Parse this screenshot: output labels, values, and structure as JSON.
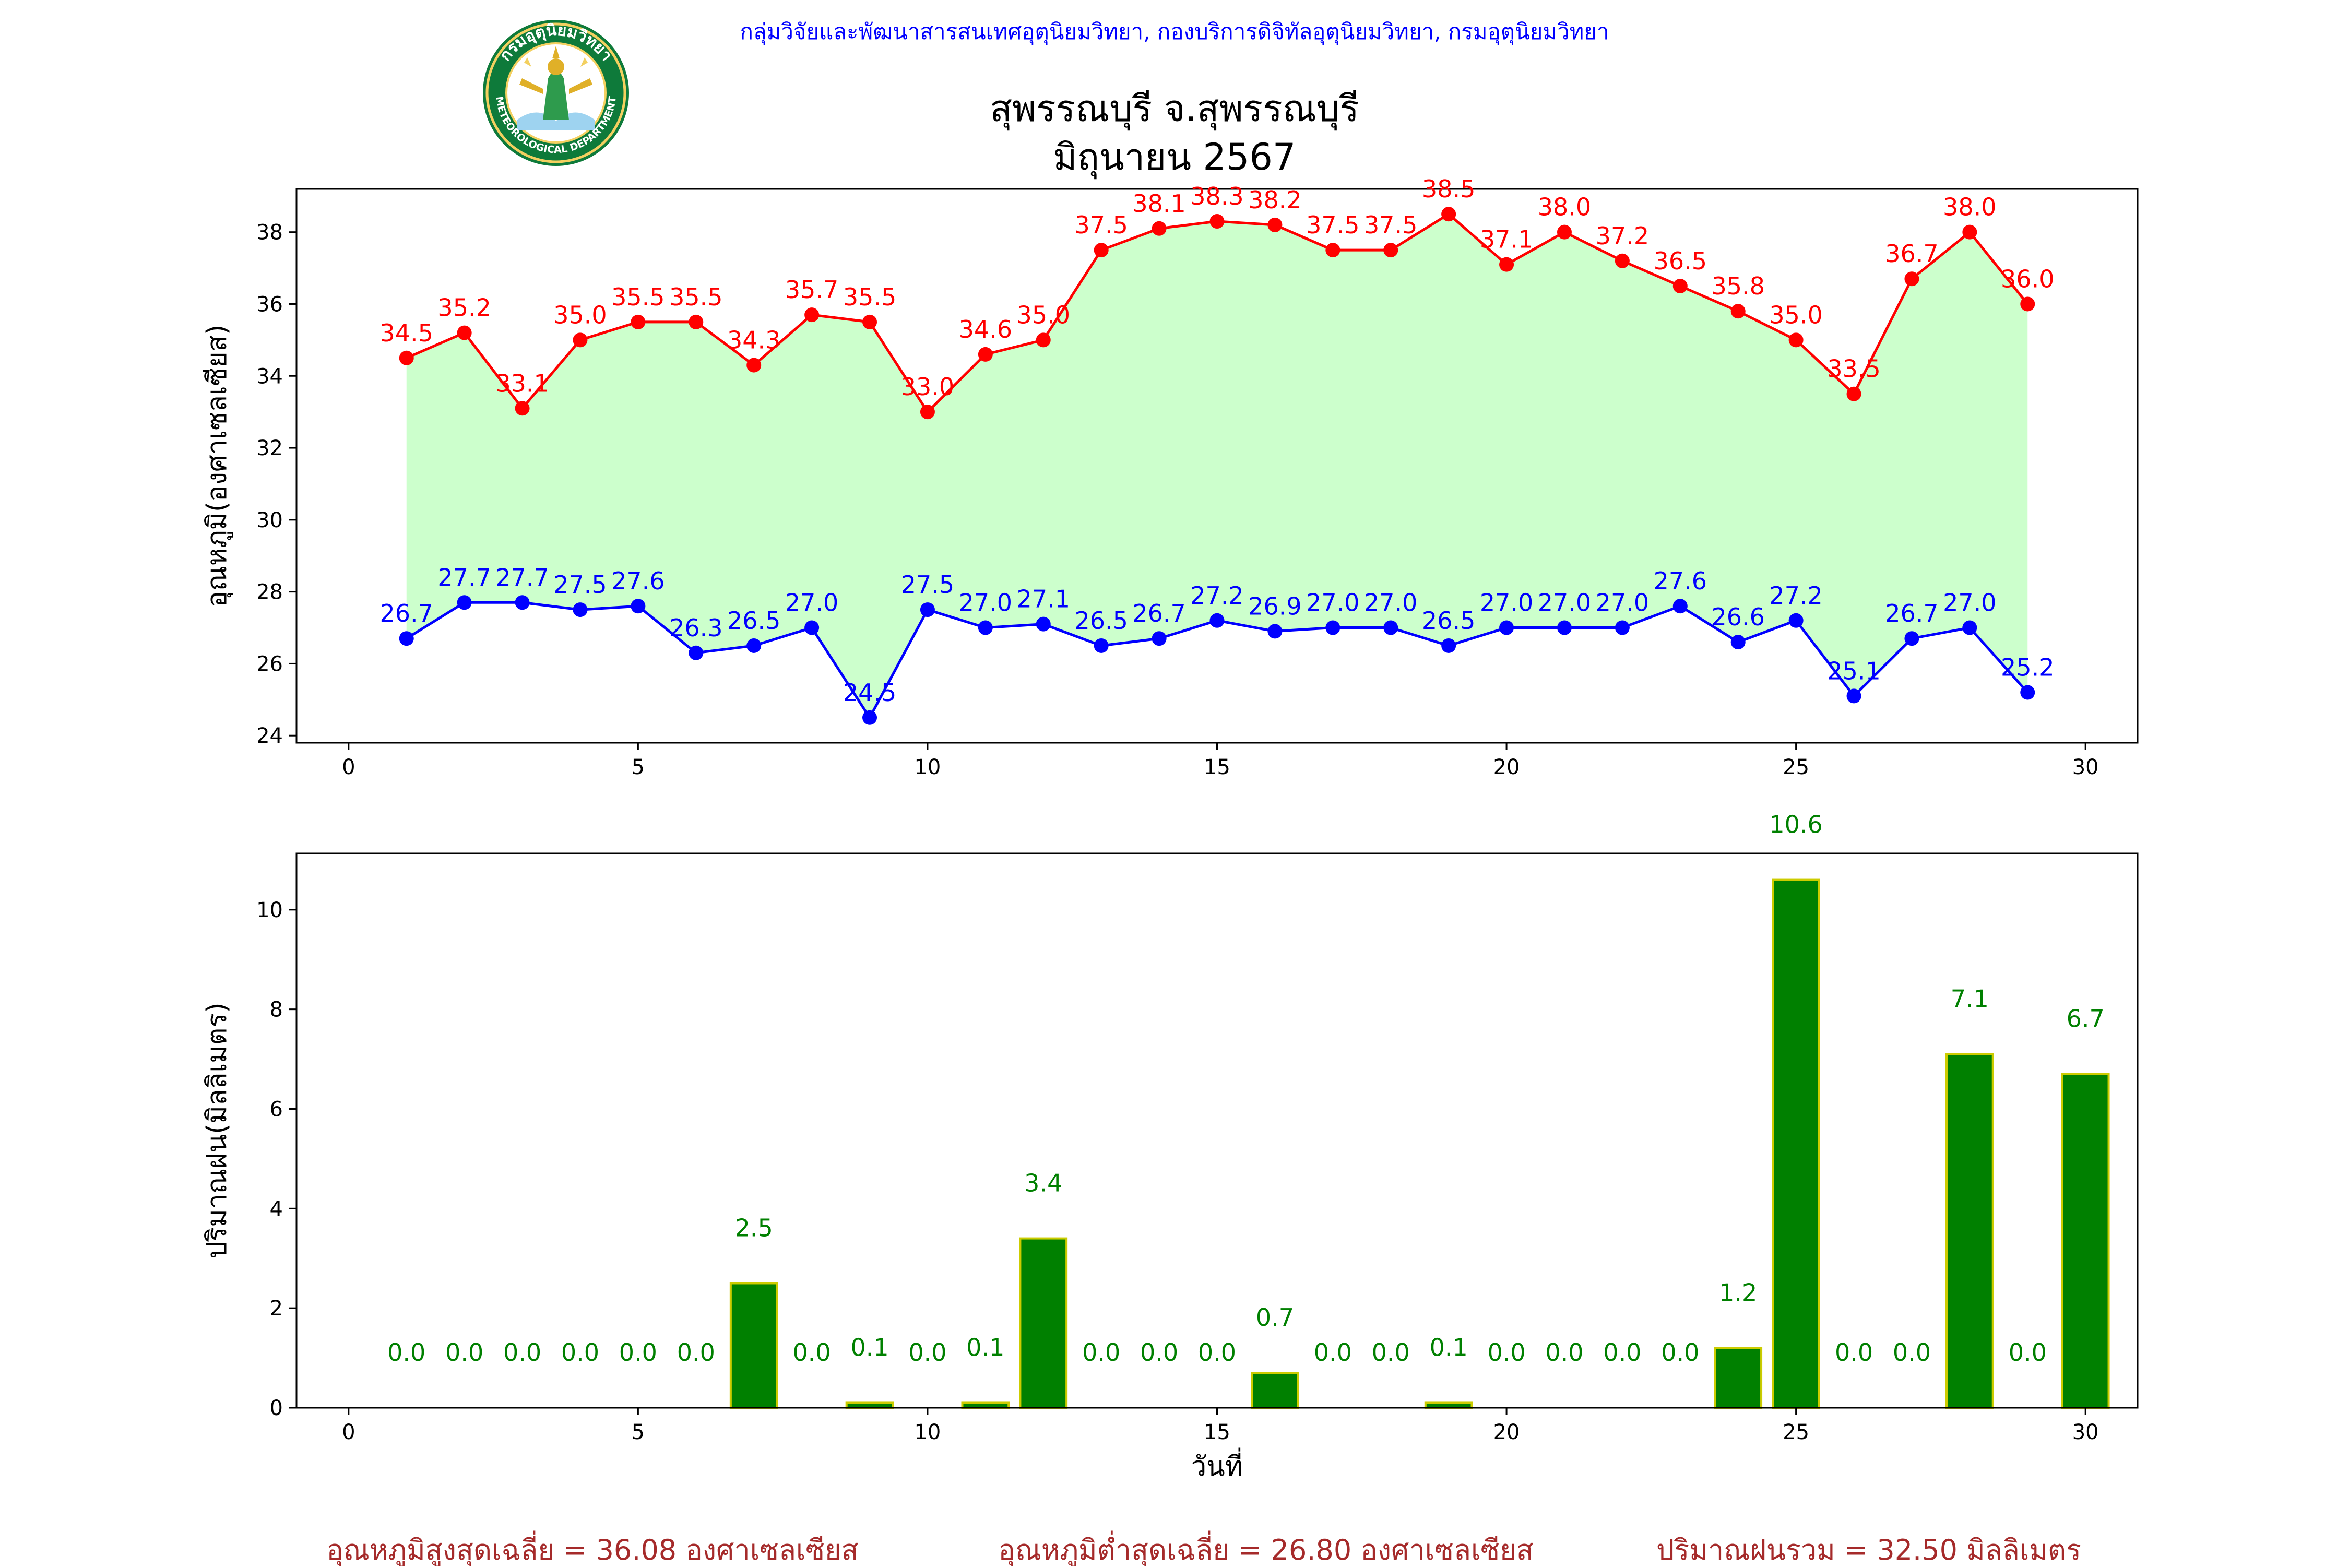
{
  "header": {
    "department_line": "กลุ่มวิจัยและพัฒนาสารสนเทศอุตุนิยมวิทยา, กองบริการดิจิทัลอุตุนิยมวิทยา, กรมอุตุนิยมวิทยา",
    "title_line1": "สุพรรณบุรี จ.สุพรรณบุรี",
    "title_line2": "มิถุนายน 2567",
    "logo_icon": "meteorological-department-seal-icon",
    "logo_text_top": "กรมอุตุนิยมวิทยา",
    "logo_text_bottom": "METEOROLOGICAL DEPARTMENT"
  },
  "footer": {
    "avg_max": "อุณหภูมิสูงสุดเฉลี่ย = 36.08 องศาเซลเซียส",
    "avg_min": "อุณหภูมิต่ำสุดเฉลี่ย = 26.80 องศาเซลเซียส",
    "total_rain": "ปริมาณฝนรวม = 32.50 มิลลิเมตร"
  },
  "colors": {
    "max_line": "#ff0000",
    "min_line": "#0000ff",
    "fill_between": "#ccffcc",
    "rain_bar": "#008000",
    "rain_edge": "#cccc00",
    "rain_label": "#008000",
    "header_text": "#0000ff",
    "footer_text": "#a52a2a"
  },
  "chart_data": [
    {
      "type": "line",
      "title": "",
      "xlabel": "",
      "ylabel": "อุณหภูมิ(องศาเซลเซียส)",
      "xlim": [
        -0.9,
        30.9
      ],
      "ylim": [
        23.8,
        39.2
      ],
      "xticks": [
        0,
        5,
        10,
        15,
        20,
        25,
        30
      ],
      "yticks": [
        24,
        26,
        28,
        30,
        32,
        34,
        36,
        38
      ],
      "grid": false,
      "x": [
        1,
        2,
        3,
        4,
        5,
        6,
        7,
        8,
        9,
        10,
        11,
        12,
        13,
        14,
        15,
        16,
        17,
        18,
        19,
        20,
        21,
        22,
        23,
        24,
        25,
        26,
        27,
        28,
        29
      ],
      "series": [
        {
          "values": [
            34.5,
            35.2,
            33.1,
            35.0,
            35.5,
            35.5,
            34.3,
            35.7,
            35.5,
            33.0,
            34.6,
            35.0,
            37.5,
            38.1,
            38.3,
            38.2,
            37.5,
            37.5,
            38.5,
            37.1,
            38.0,
            37.2,
            36.5,
            35.8,
            35.0,
            33.5,
            36.7,
            38.0,
            36.0
          ],
          "labels": [
            "34.5",
            "35.2",
            "33.1",
            "35.0",
            "35.5",
            "35.5",
            "34.3",
            "35.7",
            "35.5",
            "33.0",
            "34.6",
            "35.0",
            "37.5",
            "38.1",
            "38.3",
            "38.2",
            "37.5",
            "37.5",
            "38.5",
            "37.1",
            "38.0",
            "37.2",
            "36.5",
            "35.8",
            "35.0",
            "33.5",
            "36.7",
            "38.0",
            "36.0"
          ]
        },
        {
          "values": [
            26.7,
            27.7,
            27.7,
            27.5,
            27.6,
            26.3,
            26.5,
            27.0,
            24.5,
            27.5,
            27.0,
            27.1,
            26.5,
            26.7,
            27.2,
            26.9,
            27.0,
            27.0,
            26.5,
            27.0,
            27.0,
            27.0,
            27.6,
            26.6,
            27.2,
            25.1,
            26.7,
            27.0,
            25.2
          ],
          "labels": [
            "26.7",
            "27.7",
            "27.7",
            "27.5",
            "27.6",
            "26.3",
            "26.5",
            "27.0",
            "24.5",
            "27.5",
            "27.0",
            "27.1",
            "26.5",
            "26.7",
            "27.2",
            "26.9",
            "27.0",
            "27.0",
            "26.5",
            "27.0",
            "27.0",
            "27.0",
            "27.6",
            "26.6",
            "27.2",
            "25.1",
            "26.7",
            "27.0",
            "25.2"
          ]
        }
      ]
    },
    {
      "type": "bar",
      "title": "",
      "xlabel": "วันที่",
      "ylabel": "ปริมาณฝน(มิลลิเมตร)",
      "xlim": [
        -0.9,
        30.9
      ],
      "ylim": [
        0,
        11.13
      ],
      "xticks": [
        0,
        5,
        10,
        15,
        20,
        25,
        30
      ],
      "yticks": [
        0,
        2,
        4,
        6,
        8,
        10
      ],
      "grid": false,
      "x": [
        1,
        2,
        3,
        4,
        5,
        6,
        7,
        8,
        9,
        10,
        11,
        12,
        13,
        14,
        15,
        16,
        17,
        18,
        19,
        20,
        21,
        22,
        23,
        24,
        25,
        26,
        27,
        28,
        29,
        30
      ],
      "values": [
        0.0,
        0.0,
        0.0,
        0.0,
        0.0,
        0.0,
        2.5,
        0.0,
        0.1,
        0.0,
        0.1,
        3.4,
        0.0,
        0.0,
        0.0,
        0.7,
        0.0,
        0.0,
        0.1,
        0.0,
        0.0,
        0.0,
        0.0,
        1.2,
        10.6,
        0.0,
        0.0,
        7.1,
        0.0,
        6.7
      ],
      "labels": [
        "0.0",
        "0.0",
        "0.0",
        "0.0",
        "0.0",
        "0.0",
        "2.5",
        "0.0",
        "0.1",
        "0.0",
        "0.1",
        "3.4",
        "0.0",
        "0.0",
        "0.0",
        "0.7",
        "0.0",
        "0.0",
        "0.1",
        "0.0",
        "0.0",
        "0.0",
        "0.0",
        "1.2",
        "10.6",
        "0.0",
        "0.0",
        "7.1",
        "0.0",
        "6.7"
      ]
    }
  ]
}
